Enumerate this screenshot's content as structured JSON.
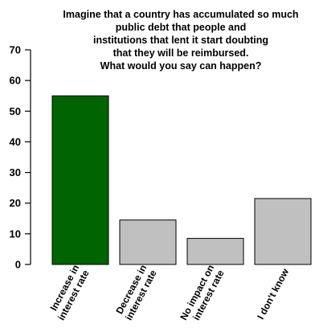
{
  "chart_data": {
    "type": "bar",
    "title_lines": [
      "Imagine that a country has accumulated so much",
      "public debt that people and",
      "institutions that lent it start doubting",
      "that they will be reimbursed.",
      "What would you say can happen?"
    ],
    "categories": [
      [
        "Increase in",
        "interest rate"
      ],
      [
        "Decrease in",
        "interest rate"
      ],
      [
        "No impact on",
        "interest rate"
      ],
      [
        "I don't know"
      ]
    ],
    "values": [
      55,
      14.5,
      8.5,
      21.5
    ],
    "bar_colors": [
      "#006400",
      "#c0c0c0",
      "#c0c0c0",
      "#c0c0c0"
    ],
    "yticks": [
      "0",
      "10",
      "20",
      "30",
      "40",
      "50",
      "60",
      "70"
    ],
    "ylim": [
      0,
      70
    ],
    "xlabel": "",
    "ylabel": "",
    "grid": false
  }
}
